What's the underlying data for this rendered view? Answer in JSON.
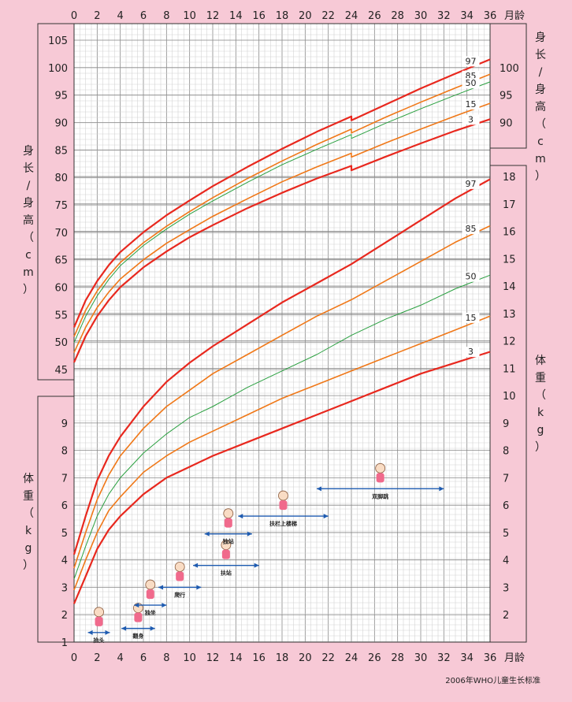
{
  "chart_data": {
    "type": "line",
    "source_note": "2006年WHO儿童生长标准",
    "x": {
      "ticks": [
        0,
        2,
        4,
        6,
        8,
        10,
        12,
        14,
        16,
        18,
        20,
        22,
        24,
        26,
        28,
        30,
        32,
        34,
        36
      ],
      "unit_label": "月龄",
      "range": [
        0,
        36
      ]
    },
    "height_axis": {
      "label": "身长/身高（cm）",
      "ticks": [
        45,
        50,
        55,
        60,
        65,
        70,
        75,
        80,
        85,
        90,
        95,
        100,
        105
      ],
      "right_ticks": [
        90,
        95,
        100
      ],
      "range": [
        42,
        108
      ]
    },
    "weight_axis": {
      "label": "体重（kg）",
      "ticks": [
        1,
        2,
        3,
        4,
        5,
        6,
        7,
        8,
        9
      ],
      "right_ticks": [
        2,
        3,
        4,
        5,
        6,
        7,
        8,
        9,
        10,
        11,
        12,
        13,
        14,
        15,
        16,
        17,
        18
      ],
      "range": [
        1,
        18.5
      ]
    },
    "height_percentiles": [
      {
        "name": "97",
        "color": "#e8281e",
        "x": [
          0,
          1,
          2,
          3,
          4,
          6,
          8,
          10,
          12,
          15,
          18,
          21,
          24,
          24,
          27,
          30,
          33,
          36
        ],
        "values": [
          52.7,
          57.6,
          61.1,
          64.0,
          66.4,
          70.0,
          73.1,
          75.8,
          78.4,
          81.9,
          85.2,
          88.3,
          91.1,
          90.4,
          93.3,
          96.2,
          98.9,
          101.5
        ]
      },
      {
        "name": "85",
        "color": "#f07818",
        "x": [
          0,
          1,
          2,
          3,
          4,
          6,
          8,
          10,
          12,
          15,
          18,
          21,
          24,
          24,
          27,
          30,
          33,
          36
        ],
        "values": [
          51.0,
          55.8,
          59.3,
          62.1,
          64.5,
          68.1,
          71.1,
          73.8,
          76.3,
          79.8,
          83.0,
          86.0,
          88.8,
          88.1,
          91.0,
          93.7,
          96.3,
          98.8
        ]
      },
      {
        "name": "50",
        "color": "#2aa040",
        "x": [
          0,
          1,
          2,
          3,
          4,
          6,
          8,
          10,
          12,
          15,
          18,
          21,
          24,
          24,
          27,
          30,
          33,
          36
        ],
        "values": [
          49.9,
          54.7,
          58.4,
          61.4,
          63.9,
          67.6,
          70.6,
          73.3,
          75.7,
          79.1,
          82.3,
          85.1,
          87.8,
          87.1,
          89.9,
          92.5,
          95.0,
          97.4
        ]
      },
      {
        "name": "15",
        "color": "#f07818",
        "x": [
          0,
          1,
          2,
          3,
          4,
          6,
          8,
          10,
          12,
          15,
          18,
          21,
          24,
          24,
          27,
          30,
          33,
          36
        ],
        "values": [
          48.1,
          52.7,
          56.3,
          59.1,
          61.5,
          65.0,
          68.0,
          70.5,
          72.9,
          76.1,
          79.2,
          81.9,
          84.4,
          83.7,
          86.3,
          88.8,
          91.2,
          93.5
        ]
      },
      {
        "name": "3",
        "color": "#e8281e",
        "x": [
          0,
          1,
          2,
          3,
          4,
          6,
          8,
          10,
          12,
          15,
          18,
          21,
          24,
          24,
          27,
          30,
          33,
          36
        ],
        "values": [
          46.3,
          51.1,
          54.7,
          57.6,
          60.0,
          63.6,
          66.5,
          69.1,
          71.3,
          74.4,
          77.2,
          79.8,
          82.1,
          81.3,
          83.8,
          86.2,
          88.5,
          90.6
        ]
      }
    ],
    "weight_percentiles": [
      {
        "name": "97",
        "color": "#e8281e",
        "x": [
          0,
          1,
          2,
          3,
          4,
          6,
          8,
          10,
          12,
          15,
          18,
          21,
          24,
          27,
          30,
          33,
          36
        ],
        "values": [
          4.2,
          5.6,
          6.9,
          7.8,
          8.5,
          9.6,
          10.5,
          11.2,
          11.8,
          12.6,
          13.4,
          14.1,
          14.8,
          15.6,
          16.4,
          17.2,
          17.9
        ]
      },
      {
        "name": "85",
        "color": "#f07818",
        "x": [
          0,
          1,
          2,
          3,
          4,
          6,
          8,
          10,
          12,
          15,
          18,
          21,
          24,
          27,
          30,
          33,
          36
        ],
        "values": [
          3.7,
          5.0,
          6.2,
          7.1,
          7.8,
          8.8,
          9.6,
          10.2,
          10.8,
          11.5,
          12.2,
          12.9,
          13.5,
          14.2,
          14.9,
          15.6,
          16.2
        ]
      },
      {
        "name": "50",
        "color": "#2aa040",
        "x": [
          0,
          1,
          2,
          3,
          4,
          6,
          8,
          10,
          12,
          15,
          18,
          21,
          24,
          27,
          30,
          33,
          36
        ],
        "values": [
          3.3,
          4.5,
          5.6,
          6.4,
          7.0,
          7.9,
          8.6,
          9.2,
          9.6,
          10.3,
          10.9,
          11.5,
          12.2,
          12.8,
          13.3,
          13.9,
          14.4
        ]
      },
      {
        "name": "15",
        "color": "#f07818",
        "x": [
          0,
          1,
          2,
          3,
          4,
          6,
          8,
          10,
          12,
          15,
          18,
          21,
          24,
          27,
          30,
          33,
          36
        ],
        "values": [
          2.9,
          4.0,
          5.0,
          5.8,
          6.3,
          7.2,
          7.8,
          8.3,
          8.7,
          9.3,
          9.9,
          10.4,
          10.9,
          11.4,
          11.9,
          12.4,
          12.9
        ]
      },
      {
        "name": "3",
        "color": "#e8281e",
        "x": [
          0,
          1,
          2,
          3,
          4,
          6,
          8,
          10,
          12,
          15,
          18,
          21,
          24,
          27,
          30,
          33,
          36
        ],
        "values": [
          2.4,
          3.4,
          4.4,
          5.1,
          5.6,
          6.4,
          7.0,
          7.4,
          7.8,
          8.3,
          8.8,
          9.3,
          9.8,
          10.3,
          10.8,
          11.2,
          11.6
        ]
      }
    ],
    "milestones": [
      {
        "label": "抬头",
        "from": 1.2,
        "to": 3.1,
        "y": 1.35
      },
      {
        "label": "翻身",
        "from": 4.1,
        "to": 7.0,
        "y": 1.5
      },
      {
        "label": "独坐",
        "from": 5.2,
        "to": 8.0,
        "y": 2.35
      },
      {
        "label": "爬行",
        "from": 7.3,
        "to": 11.0,
        "y": 3.0
      },
      {
        "label": "扶站",
        "from": 10.3,
        "to": 16.0,
        "y": 3.8
      },
      {
        "label": "独站",
        "from": 11.3,
        "to": 15.4,
        "y": 4.95
      },
      {
        "label": "扶栏上楼梯",
        "from": 14.2,
        "to": 22.0,
        "y": 5.6
      },
      {
        "label": "双脚跳",
        "from": 21.0,
        "to": 32.0,
        "y": 6.6
      }
    ],
    "grid": true
  }
}
